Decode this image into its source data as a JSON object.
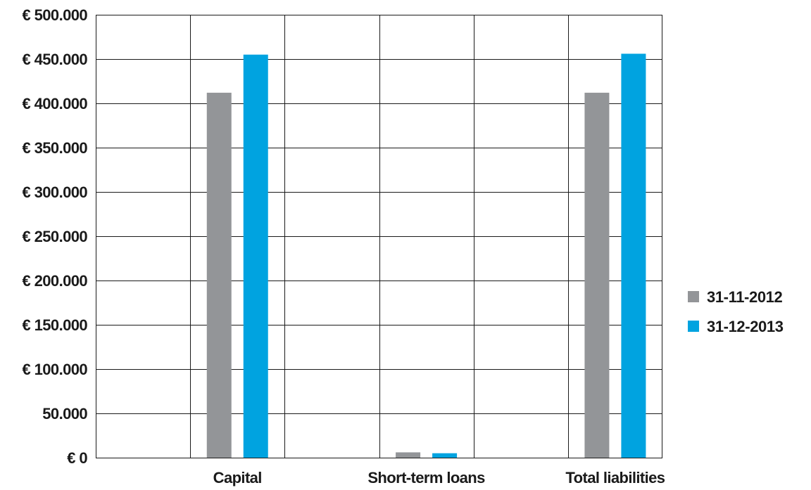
{
  "chart_data": {
    "type": "bar",
    "title": "",
    "xlabel": "",
    "ylabel": "",
    "categories": [
      "",
      "Capital",
      "",
      "Short-term loans",
      "",
      "Total liabilities"
    ],
    "series": [
      {
        "name": "31-11-2012",
        "color": "#939598",
        "values": [
          0,
          412000,
          0,
          6000,
          0,
          412000
        ]
      },
      {
        "name": "31-12-2013",
        "color": "#00a3e0",
        "values": [
          0,
          455000,
          0,
          5000,
          0,
          456000
        ]
      }
    ],
    "ylim": [
      0,
      500000
    ],
    "yticks": [
      0,
      50000,
      100000,
      150000,
      200000,
      250000,
      300000,
      350000,
      400000,
      450000,
      500000
    ],
    "ytick_labels": [
      "€ 0",
      "50.000",
      "€ 100.000",
      "€ 150.000",
      "€ 200.000",
      "€ 250.000",
      "€ 300.000",
      "€ 350.000",
      "€ 400.000",
      "€ 450.000",
      "€ 500.000"
    ],
    "grid": true,
    "legend": "right"
  }
}
